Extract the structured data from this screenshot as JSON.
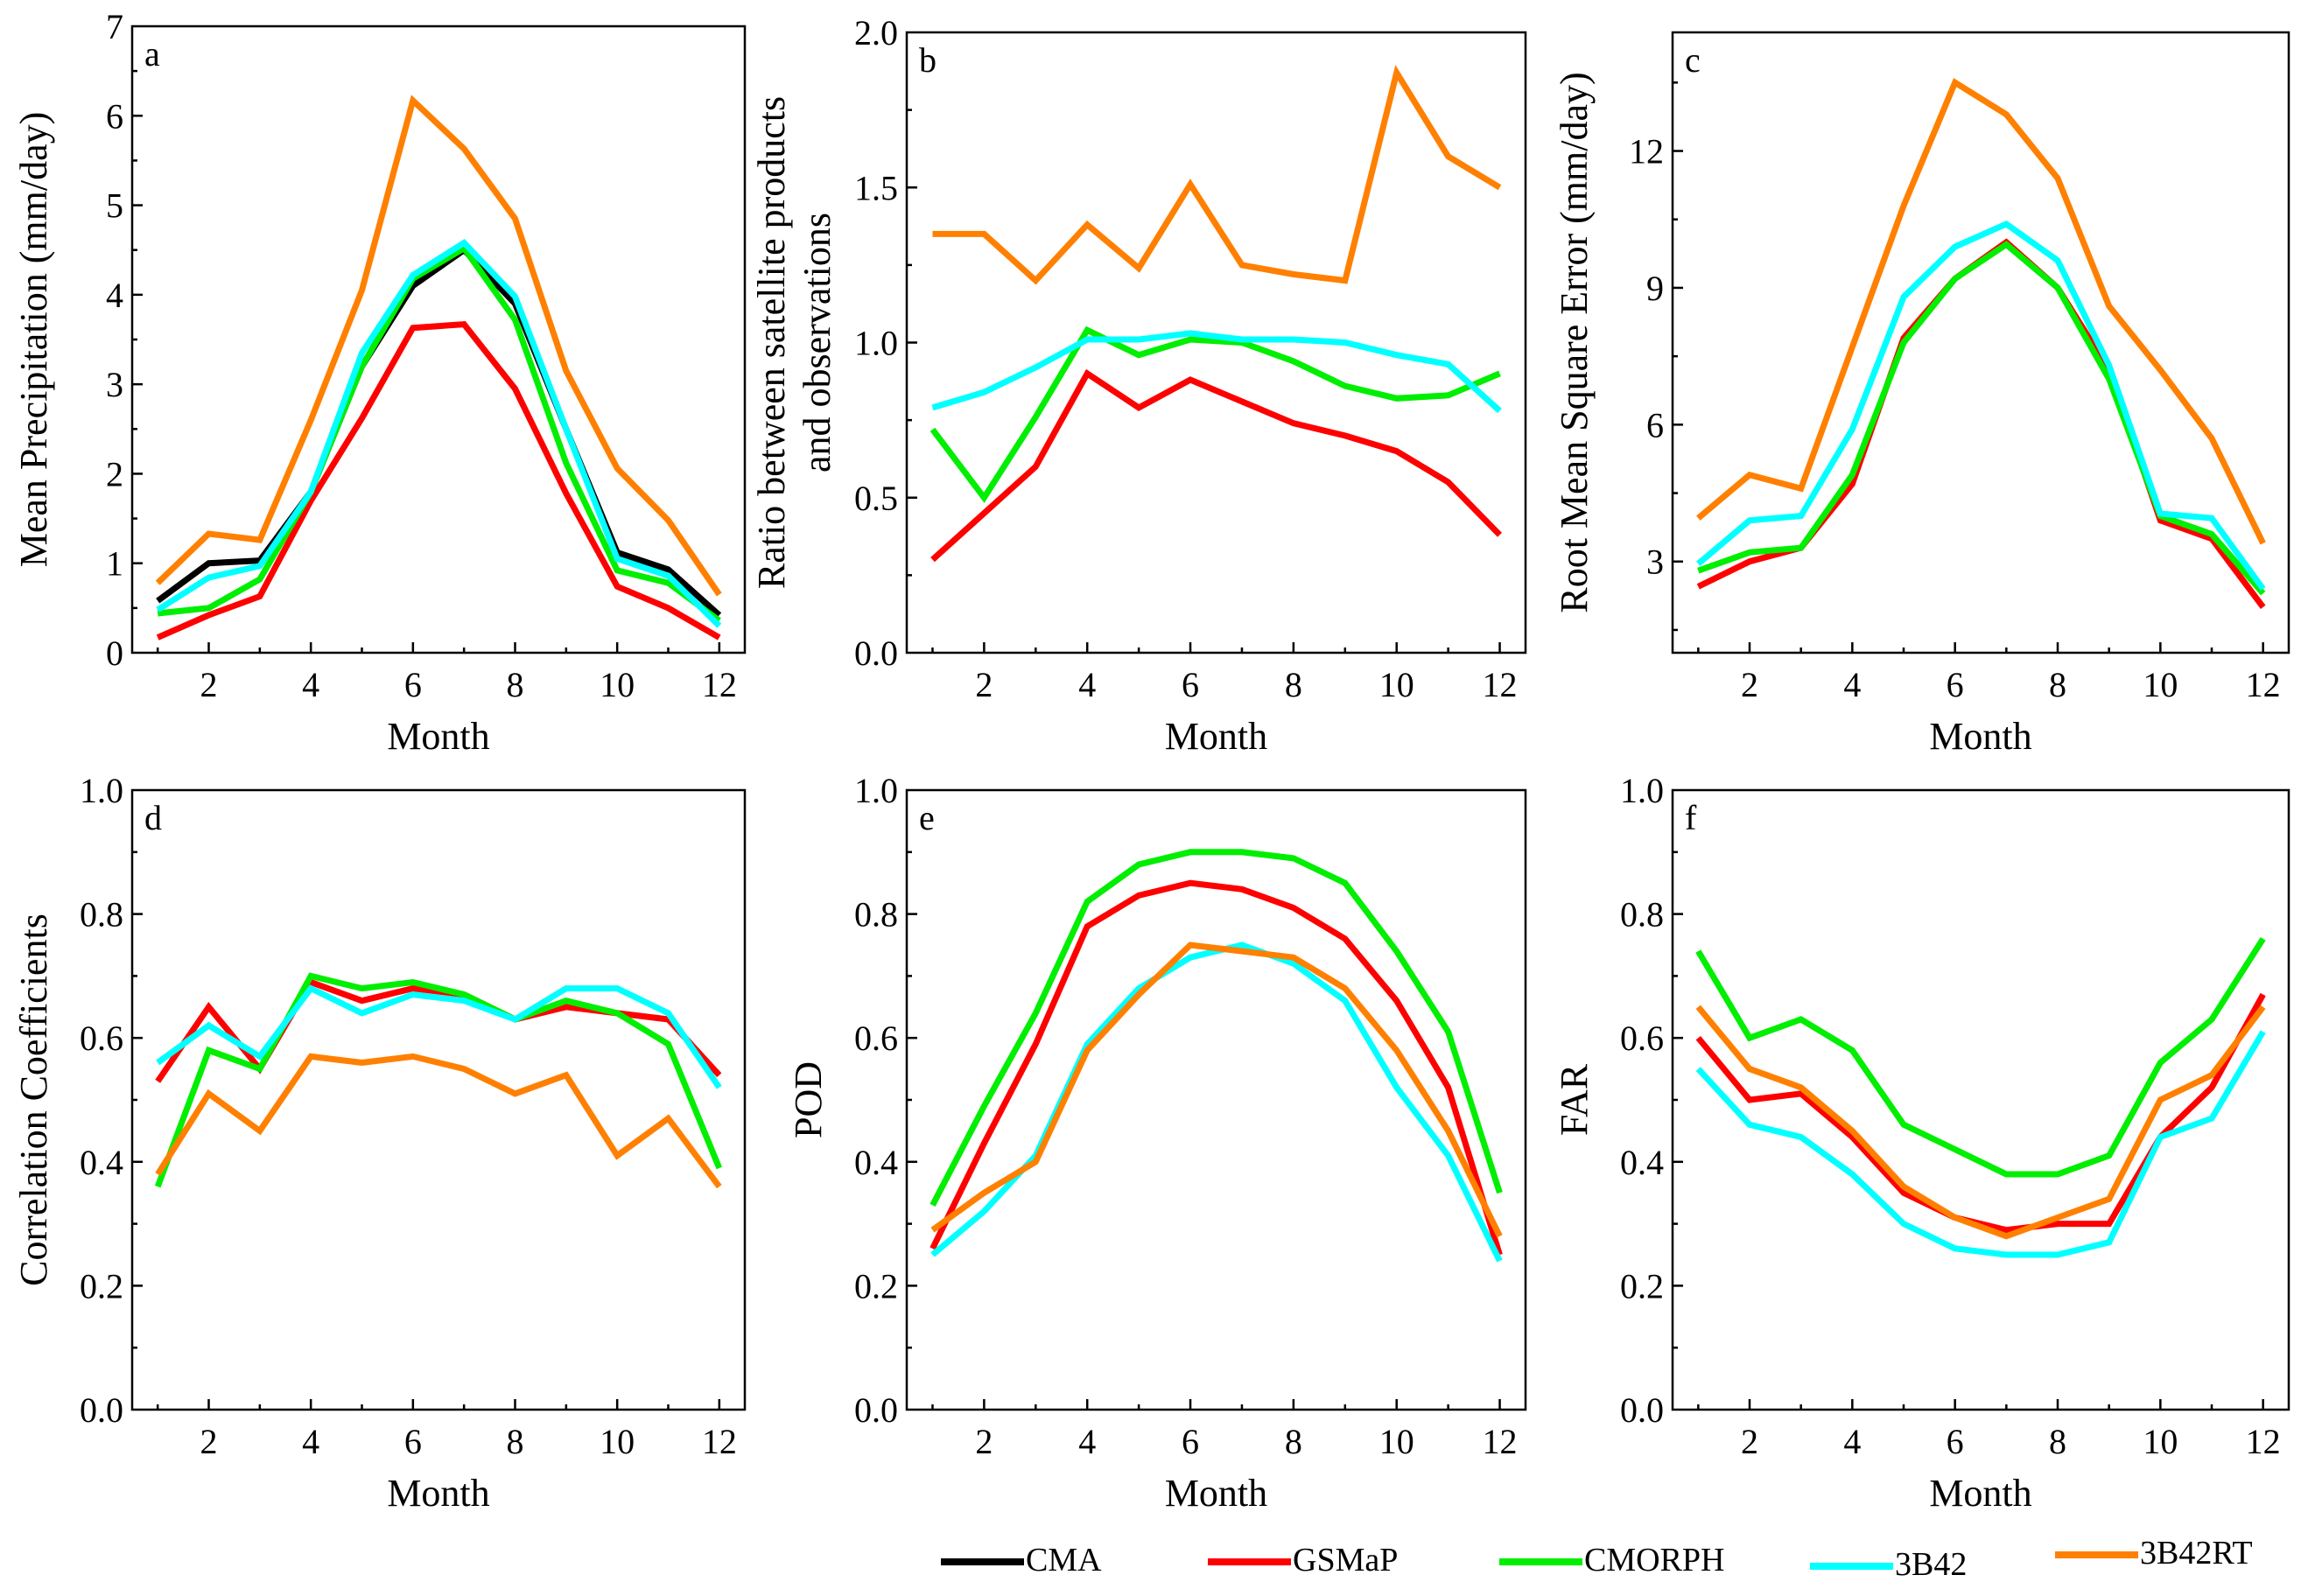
{
  "figure": {
    "x_title": "Month",
    "legend": [
      {
        "name": "CMA",
        "color": "#000000"
      },
      {
        "name": "GSMaP",
        "color": "#ff0000"
      },
      {
        "name": "CMORPH",
        "color": "#00ee00"
      },
      {
        "name": "3B42",
        "color": "#00ffff"
      },
      {
        "name": "3B42RT",
        "color": "#ff8000"
      }
    ]
  },
  "chart_data": [
    {
      "id": "a",
      "type": "line",
      "panel_label": "a",
      "xlabel": "Month",
      "ylabel": "Mean Precipitation (mm/day)",
      "x": [
        1,
        2,
        3,
        4,
        5,
        6,
        7,
        8,
        9,
        10,
        11,
        12
      ],
      "xticks": [
        2,
        4,
        6,
        8,
        10,
        12
      ],
      "xlim": [
        0.5,
        12.5
      ],
      "ylim": [
        0,
        7
      ],
      "yticks": [
        0,
        1,
        2,
        3,
        4,
        5,
        6,
        7
      ],
      "ytick_labels": [
        "0",
        "1",
        "2",
        "3",
        "4",
        "5",
        "6",
        "7"
      ],
      "yminor": 0.5,
      "series": [
        {
          "name": "CMA",
          "color": "#000000",
          "values": [
            0.58,
            1.0,
            1.03,
            1.8,
            3.2,
            4.1,
            4.5,
            3.9,
            2.5,
            1.12,
            0.93,
            0.42
          ]
        },
        {
          "name": "GSMaP",
          "color": "#ff0000",
          "values": [
            0.17,
            0.42,
            0.63,
            1.7,
            2.62,
            3.63,
            3.67,
            2.95,
            1.78,
            0.74,
            0.5,
            0.17
          ]
        },
        {
          "name": "CMORPH",
          "color": "#00ee00",
          "values": [
            0.44,
            0.5,
            0.82,
            1.8,
            3.2,
            4.18,
            4.52,
            3.72,
            2.12,
            0.92,
            0.78,
            0.36
          ]
        },
        {
          "name": "3B42",
          "color": "#00ffff",
          "values": [
            0.48,
            0.84,
            0.97,
            1.8,
            3.35,
            4.22,
            4.58,
            3.98,
            2.5,
            1.05,
            0.86,
            0.3
          ]
        },
        {
          "name": "3B42RT",
          "color": "#ff8000",
          "values": [
            0.78,
            1.33,
            1.26,
            2.6,
            4.05,
            6.17,
            5.63,
            4.85,
            3.15,
            2.06,
            1.48,
            0.65
          ]
        }
      ]
    },
    {
      "id": "b",
      "type": "line",
      "panel_label": "b",
      "xlabel": "Month",
      "ylabel": [
        "Ratio between satellite products",
        "and observations"
      ],
      "x": [
        1,
        2,
        3,
        4,
        5,
        6,
        7,
        8,
        9,
        10,
        11,
        12
      ],
      "xticks": [
        2,
        4,
        6,
        8,
        10,
        12
      ],
      "xlim": [
        0.5,
        12.5
      ],
      "ylim": [
        0,
        2.0
      ],
      "yticks": [
        0,
        0.5,
        1.0,
        1.5,
        2.0
      ],
      "ytick_labels": [
        "0.0",
        "0.5",
        "1.0",
        "1.5",
        "2.0"
      ],
      "yminor": 0.25,
      "series": [
        {
          "name": "GSMaP",
          "color": "#ff0000",
          "values": [
            0.3,
            0.45,
            0.6,
            0.9,
            0.79,
            0.88,
            0.81,
            0.74,
            0.7,
            0.65,
            0.55,
            0.38
          ]
        },
        {
          "name": "CMORPH",
          "color": "#00ee00",
          "values": [
            0.72,
            0.5,
            0.76,
            1.04,
            0.96,
            1.01,
            1.0,
            0.94,
            0.86,
            0.82,
            0.83,
            0.9
          ]
        },
        {
          "name": "3B42",
          "color": "#00ffff",
          "values": [
            0.79,
            0.84,
            0.92,
            1.01,
            1.01,
            1.03,
            1.01,
            1.01,
            1.0,
            0.96,
            0.93,
            0.78
          ]
        },
        {
          "name": "3B42RT",
          "color": "#ff8000",
          "values": [
            1.35,
            1.35,
            1.2,
            1.38,
            1.24,
            1.51,
            1.25,
            1.22,
            1.2,
            1.87,
            1.6,
            1.5
          ]
        }
      ]
    },
    {
      "id": "c",
      "type": "line",
      "panel_label": "c",
      "xlabel": "Month",
      "ylabel": "Root Mean Square Error (mm/day)",
      "x": [
        1,
        2,
        3,
        4,
        5,
        6,
        7,
        8,
        9,
        10,
        11,
        12
      ],
      "xticks": [
        2,
        4,
        6,
        8,
        10,
        12
      ],
      "xlim": [
        0.5,
        12.5
      ],
      "ylim": [
        1,
        14.6
      ],
      "yticks": [
        3,
        6,
        9,
        12
      ],
      "ytick_labels": [
        "3",
        "6",
        "9",
        "12"
      ],
      "yminor": 1.5,
      "series": [
        {
          "name": "GSMaP",
          "color": "#ff0000",
          "values": [
            2.45,
            3.0,
            3.3,
            4.7,
            7.9,
            9.2,
            10.0,
            9.0,
            7.2,
            3.9,
            3.5,
            2.0
          ]
        },
        {
          "name": "CMORPH",
          "color": "#00ee00",
          "values": [
            2.8,
            3.2,
            3.3,
            4.9,
            7.8,
            9.2,
            9.95,
            9.0,
            7.0,
            4.0,
            3.6,
            2.3
          ]
        },
        {
          "name": "3B42",
          "color": "#00ffff",
          "values": [
            2.95,
            3.9,
            4.0,
            5.9,
            8.8,
            9.9,
            10.4,
            9.6,
            7.3,
            4.05,
            3.95,
            2.4
          ]
        },
        {
          "name": "3B42RT",
          "color": "#ff8000",
          "values": [
            3.95,
            4.9,
            4.6,
            7.7,
            10.8,
            13.5,
            12.8,
            11.4,
            8.6,
            7.2,
            5.7,
            3.4
          ]
        }
      ]
    },
    {
      "id": "d",
      "type": "line",
      "panel_label": "d",
      "xlabel": "Month",
      "ylabel": "Correlation Coefficients",
      "x": [
        1,
        2,
        3,
        4,
        5,
        6,
        7,
        8,
        9,
        10,
        11,
        12
      ],
      "xticks": [
        2,
        4,
        6,
        8,
        10,
        12
      ],
      "xlim": [
        0.5,
        12.5
      ],
      "ylim": [
        0,
        1.0
      ],
      "yticks": [
        0,
        0.2,
        0.4,
        0.6,
        0.8,
        1.0
      ],
      "ytick_labels": [
        "0.0",
        "0.2",
        "0.4",
        "0.6",
        "0.8",
        "1.0"
      ],
      "yminor": 0.1,
      "series": [
        {
          "name": "GSMaP",
          "color": "#ff0000",
          "values": [
            0.53,
            0.65,
            0.55,
            0.69,
            0.66,
            0.68,
            0.67,
            0.63,
            0.65,
            0.64,
            0.63,
            0.54
          ]
        },
        {
          "name": "CMORPH",
          "color": "#00ee00",
          "values": [
            0.36,
            0.58,
            0.55,
            0.7,
            0.68,
            0.69,
            0.67,
            0.63,
            0.66,
            0.64,
            0.59,
            0.39
          ]
        },
        {
          "name": "3B42",
          "color": "#00ffff",
          "values": [
            0.56,
            0.62,
            0.57,
            0.68,
            0.64,
            0.67,
            0.66,
            0.63,
            0.68,
            0.68,
            0.64,
            0.52
          ]
        },
        {
          "name": "3B42RT",
          "color": "#ff8000",
          "values": [
            0.38,
            0.51,
            0.45,
            0.57,
            0.56,
            0.57,
            0.55,
            0.51,
            0.54,
            0.41,
            0.47,
            0.36
          ]
        }
      ]
    },
    {
      "id": "e",
      "type": "line",
      "panel_label": "e",
      "xlabel": "Month",
      "ylabel": "POD",
      "x": [
        1,
        2,
        3,
        4,
        5,
        6,
        7,
        8,
        9,
        10,
        11,
        12
      ],
      "xticks": [
        2,
        4,
        6,
        8,
        10,
        12
      ],
      "xlim": [
        0.5,
        12.5
      ],
      "ylim": [
        0,
        1.0
      ],
      "yticks": [
        0,
        0.2,
        0.4,
        0.6,
        0.8,
        1.0
      ],
      "ytick_labels": [
        "0.0",
        "0.2",
        "0.4",
        "0.6",
        "0.8",
        "1.0"
      ],
      "yminor": 0.1,
      "series": [
        {
          "name": "GSMaP",
          "color": "#ff0000",
          "values": [
            0.26,
            0.43,
            0.59,
            0.78,
            0.83,
            0.85,
            0.84,
            0.81,
            0.76,
            0.66,
            0.52,
            0.25
          ]
        },
        {
          "name": "CMORPH",
          "color": "#00ee00",
          "values": [
            0.33,
            0.49,
            0.64,
            0.82,
            0.88,
            0.9,
            0.9,
            0.89,
            0.85,
            0.74,
            0.61,
            0.35
          ]
        },
        {
          "name": "3B42",
          "color": "#00ffff",
          "values": [
            0.25,
            0.32,
            0.41,
            0.59,
            0.68,
            0.73,
            0.75,
            0.72,
            0.66,
            0.52,
            0.41,
            0.24
          ]
        },
        {
          "name": "3B42RT",
          "color": "#ff8000",
          "values": [
            0.29,
            0.35,
            0.4,
            0.58,
            0.67,
            0.75,
            0.74,
            0.73,
            0.68,
            0.58,
            0.45,
            0.28
          ]
        }
      ]
    },
    {
      "id": "f",
      "type": "line",
      "panel_label": "f",
      "xlabel": "Month",
      "ylabel": "FAR",
      "x": [
        1,
        2,
        3,
        4,
        5,
        6,
        7,
        8,
        9,
        10,
        11,
        12
      ],
      "xticks": [
        2,
        4,
        6,
        8,
        10,
        12
      ],
      "xlim": [
        0.5,
        12.5
      ],
      "ylim": [
        0,
        1.0
      ],
      "yticks": [
        0,
        0.2,
        0.4,
        0.6,
        0.8,
        1.0
      ],
      "ytick_labels": [
        "0.0",
        "0.2",
        "0.4",
        "0.6",
        "0.8",
        "1.0"
      ],
      "yminor": 0.1,
      "series": [
        {
          "name": "GSMaP",
          "color": "#ff0000",
          "values": [
            0.6,
            0.5,
            0.51,
            0.44,
            0.35,
            0.31,
            0.29,
            0.3,
            0.3,
            0.44,
            0.52,
            0.67
          ]
        },
        {
          "name": "CMORPH",
          "color": "#00ee00",
          "values": [
            0.74,
            0.6,
            0.63,
            0.58,
            0.46,
            0.42,
            0.38,
            0.38,
            0.41,
            0.56,
            0.63,
            0.76
          ]
        },
        {
          "name": "3B42",
          "color": "#00ffff",
          "values": [
            0.55,
            0.46,
            0.44,
            0.38,
            0.3,
            0.26,
            0.25,
            0.25,
            0.27,
            0.44,
            0.47,
            0.61
          ]
        },
        {
          "name": "3B42RT",
          "color": "#ff8000",
          "values": [
            0.65,
            0.55,
            0.52,
            0.45,
            0.36,
            0.31,
            0.28,
            0.31,
            0.34,
            0.5,
            0.54,
            0.65
          ]
        }
      ]
    }
  ]
}
